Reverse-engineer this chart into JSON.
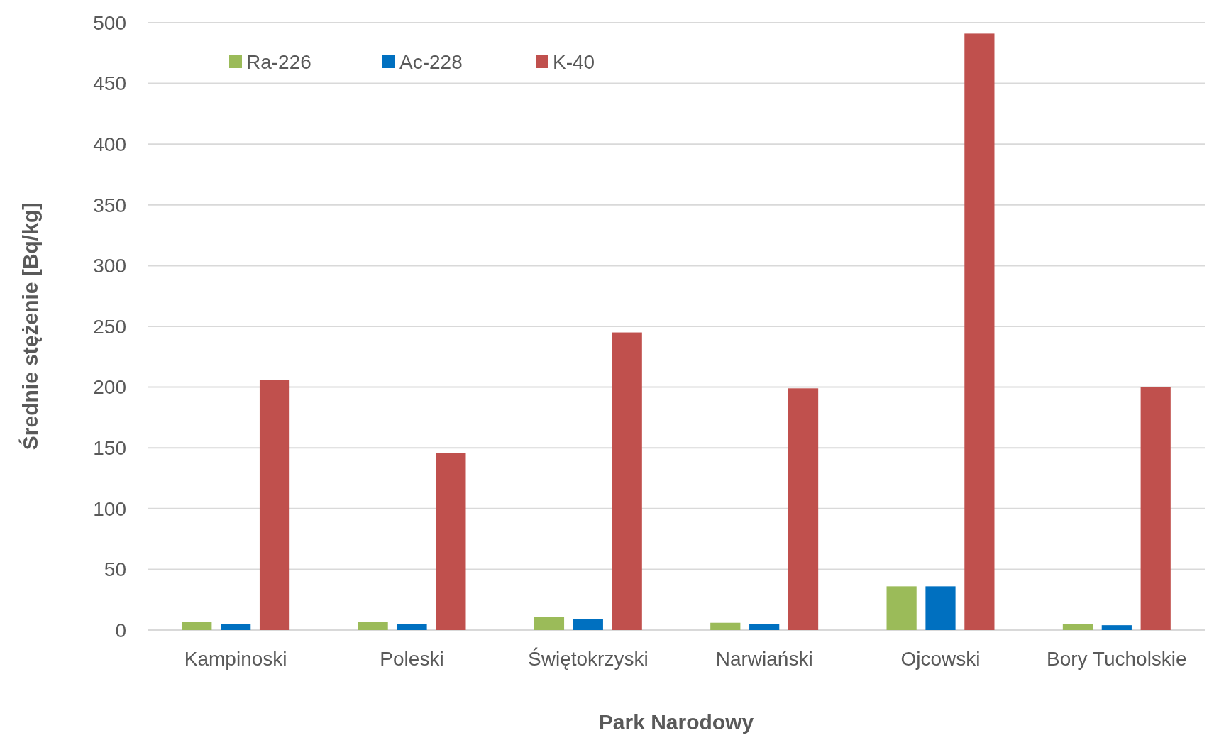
{
  "chart_data": {
    "type": "bar",
    "xlabel": "Park Narodowy",
    "ylabel": "Średnie stężenie [Bq/kg]",
    "categories": [
      "Kampinoski",
      "Poleski",
      "Świętokrzyski",
      "Narwiański",
      "Ojcowski",
      "Bory Tucholskie"
    ],
    "series": [
      {
        "name": "Ra-226",
        "color": "#9bbb59",
        "values": [
          7,
          7,
          11,
          6,
          36,
          5
        ]
      },
      {
        "name": "Ac-228",
        "color": "#0070c0",
        "values": [
          5,
          5,
          9,
          5,
          36,
          4
        ]
      },
      {
        "name": "K-40",
        "color": "#c0504d",
        "values": [
          206,
          146,
          245,
          199,
          491,
          200
        ]
      }
    ],
    "ylim": [
      0,
      500
    ],
    "yticks": [
      0,
      50,
      100,
      150,
      200,
      250,
      300,
      350,
      400,
      450,
      500
    ],
    "grid": "y",
    "legend": "top left"
  }
}
